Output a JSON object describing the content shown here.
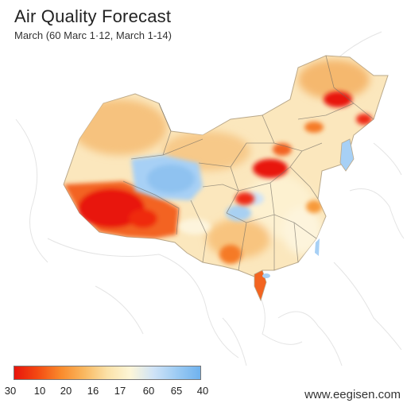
{
  "title": "Air Quality Forecast",
  "subtitle": "March (60 Marc 1·12, March 1-14)",
  "legend": {
    "colors": [
      "#e8140c",
      "#f34a12",
      "#f98a2c",
      "#f9b860",
      "#fbe2a8",
      "#fdf6d8",
      "#cfe3f7",
      "#9ccbf3",
      "#6fb2ee"
    ],
    "ticks": [
      "30",
      "10",
      "20",
      "16",
      "17",
      "60",
      "65",
      "40"
    ]
  },
  "watermark": "www.eegisen.com",
  "colors": {
    "high": "#e8140c",
    "medium_high": "#f98a2c",
    "medium": "#f7c27c",
    "low": "#fdf3d6",
    "good": "#9ccbf3"
  }
}
